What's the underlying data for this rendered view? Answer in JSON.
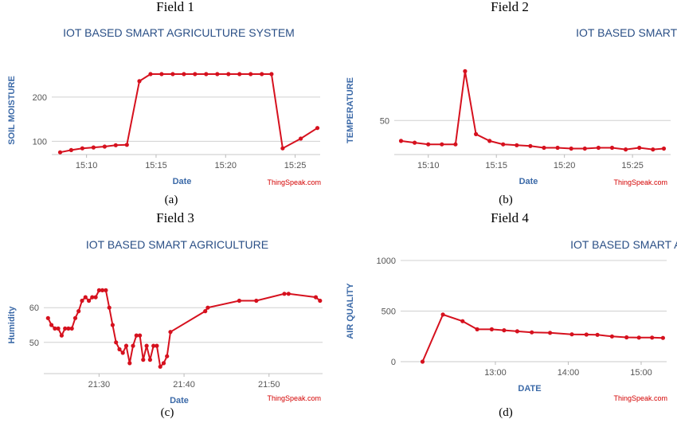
{
  "charts": [
    {
      "field_title": "Field 1",
      "caption": "(a)",
      "credit": "ThingSpeak.com",
      "chart_data": {
        "type": "line",
        "title": "IOT BASED SMART AGRICULTURE SYSTEM",
        "xlabel": "Date",
        "ylabel": "SOIL MOISTURE",
        "xlim": [
          7.5,
          26.8
        ],
        "ylim": [
          70,
          270
        ],
        "x_ticks": [
          10,
          15,
          20,
          25
        ],
        "x_tick_labels": [
          "15:10",
          "15:15",
          "15:20",
          "15:25"
        ],
        "y_ticks": [
          100,
          200
        ],
        "grid": true,
        "series": [
          {
            "x": [
              8.1,
              8.9,
              9.7,
              10.5,
              11.3,
              12.1,
              12.9,
              13.8,
              14.6,
              15.4,
              16.2,
              17.0,
              17.8,
              18.6,
              19.4,
              20.2,
              21.0,
              21.8,
              22.6,
              23.3,
              24.1,
              25.4,
              26.6
            ],
            "y": [
              75,
              80,
              84,
              86,
              88,
              91,
              92,
              236,
              252,
              252,
              252,
              252,
              252,
              252,
              252,
              252,
              252,
              252,
              252,
              252,
              84,
              106,
              130
            ]
          }
        ]
      }
    },
    {
      "field_title": "Field 2",
      "caption": "(b)",
      "credit": "ThingSpeak.com",
      "chart_data": {
        "type": "line",
        "title": "IOT BASED SMART AGRICULTURE SYSTEM",
        "xlabel": "Date",
        "ylabel": "TEMPERATURE",
        "xlim": [
          7.5,
          27.8
        ],
        "ylim": [
          30,
          82
        ],
        "x_ticks": [
          10,
          15,
          20,
          25
        ],
        "x_tick_labels": [
          "15:10",
          "15:15",
          "15:20",
          "15:25"
        ],
        "y_ticks": [
          50
        ],
        "grid": true,
        "series": [
          {
            "x": [
              8.0,
              9.0,
              10.0,
              11.0,
              12.0,
              12.7,
              13.5,
              14.5,
              15.5,
              16.5,
              17.5,
              18.5,
              19.5,
              20.5,
              21.5,
              22.5,
              23.5,
              24.5,
              25.5,
              26.5,
              27.3
            ],
            "y": [
              38,
              37,
              36,
              36,
              36,
              79,
              42,
              38,
              36,
              35.5,
              35,
              34,
              34,
              33.5,
              33.5,
              34,
              34,
              33,
              34,
              33,
              33.5
            ]
          }
        ]
      }
    },
    {
      "field_title": "Field 3",
      "caption": "(c)",
      "credit": "ThingSpeak.com",
      "chart_data": {
        "type": "line",
        "title": "IOT BASED SMART AGRICULTURE",
        "xlabel": "Date",
        "ylabel": "Humidity",
        "xlim": [
          1283.5,
          1316.3
        ],
        "ylim": [
          41,
          69
        ],
        "x_ticks": [
          1290,
          1300,
          1310
        ],
        "x_tick_labels": [
          "21:30",
          "21:40",
          "21:50"
        ],
        "y_ticks": [
          50,
          60
        ],
        "grid": true,
        "series": [
          {
            "x": [
              1284.0,
              1284.4,
              1284.8,
              1285.2,
              1285.6,
              1286.0,
              1286.4,
              1286.8,
              1287.2,
              1287.6,
              1288.0,
              1288.4,
              1288.8,
              1289.2,
              1289.6,
              1290.0,
              1290.4,
              1290.8,
              1291.2,
              1291.6,
              1292.0,
              1292.4,
              1292.8,
              1293.2,
              1293.6,
              1294.0,
              1294.4,
              1294.8,
              1295.2,
              1295.6,
              1296.0,
              1296.4,
              1296.8,
              1297.2,
              1297.6,
              1298.0,
              1298.4,
              1302.5,
              1302.8,
              1306.5,
              1308.5,
              1311.8,
              1312.3,
              1315.5,
              1316.0
            ],
            "y": [
              57,
              55,
              54,
              54,
              52,
              54,
              54,
              54,
              57,
              59,
              62,
              63,
              62,
              63,
              63,
              65,
              65,
              65,
              60,
              55,
              50,
              48,
              47,
              49,
              44,
              49,
              52,
              52,
              45,
              49,
              45,
              49,
              49,
              43,
              44,
              46,
              53,
              59,
              60,
              62,
              62,
              64,
              64,
              63,
              62
            ]
          }
        ]
      }
    },
    {
      "field_title": "Field 4",
      "caption": "(d)",
      "credit": "ThingSpeak.com",
      "chart_data": {
        "type": "line",
        "title": "IOT BASED SMART AGRICULTURE SYSTEM",
        "xlabel": "DATE",
        "ylabel": "AIR QUALITY",
        "xlim": [
          11.7,
          15.35
        ],
        "ylim": [
          0,
          1000
        ],
        "x_ticks": [
          13,
          14,
          15
        ],
        "x_tick_labels": [
          "13:00",
          "14:00",
          "15:00"
        ],
        "y_ticks": [
          0,
          500,
          1000
        ],
        "grid": true,
        "series": [
          {
            "x": [
              12.0,
              12.28,
              12.55,
              12.75,
              12.95,
              13.12,
              13.3,
              13.5,
              13.75,
              14.05,
              14.25,
              14.4,
              14.6,
              14.8,
              14.97,
              15.15,
              15.3
            ],
            "y": [
              0,
              465,
              400,
              320,
              320,
              310,
              300,
              290,
              285,
              270,
              268,
              265,
              250,
              240,
              238,
              238,
              235
            ]
          }
        ]
      }
    }
  ]
}
